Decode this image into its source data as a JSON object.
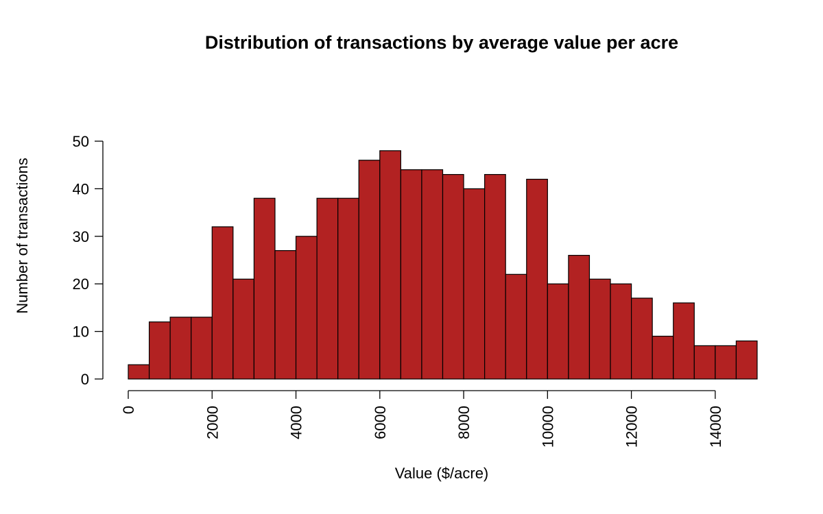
{
  "chart_data": {
    "type": "bar",
    "title": "Distribution of transactions by average value per acre",
    "xlabel": "Value ($/acre)",
    "ylabel": "Number of transactions",
    "bin_width": 500,
    "bin_start": 0,
    "values": [
      3,
      12,
      13,
      13,
      32,
      21,
      38,
      27,
      30,
      38,
      38,
      46,
      48,
      44,
      44,
      43,
      40,
      43,
      22,
      42,
      20,
      26,
      21,
      20,
      17,
      9,
      16,
      7,
      7,
      8
    ],
    "xlim": [
      0,
      15000
    ],
    "ylim": [
      0,
      50
    ],
    "x_ticks": [
      "0",
      "2000",
      "4000",
      "6000",
      "8000",
      "10000",
      "12000",
      "14000"
    ],
    "y_ticks": [
      "0",
      "10",
      "20",
      "30",
      "40",
      "50"
    ],
    "bar_color": "#b22222",
    "grid": false
  }
}
